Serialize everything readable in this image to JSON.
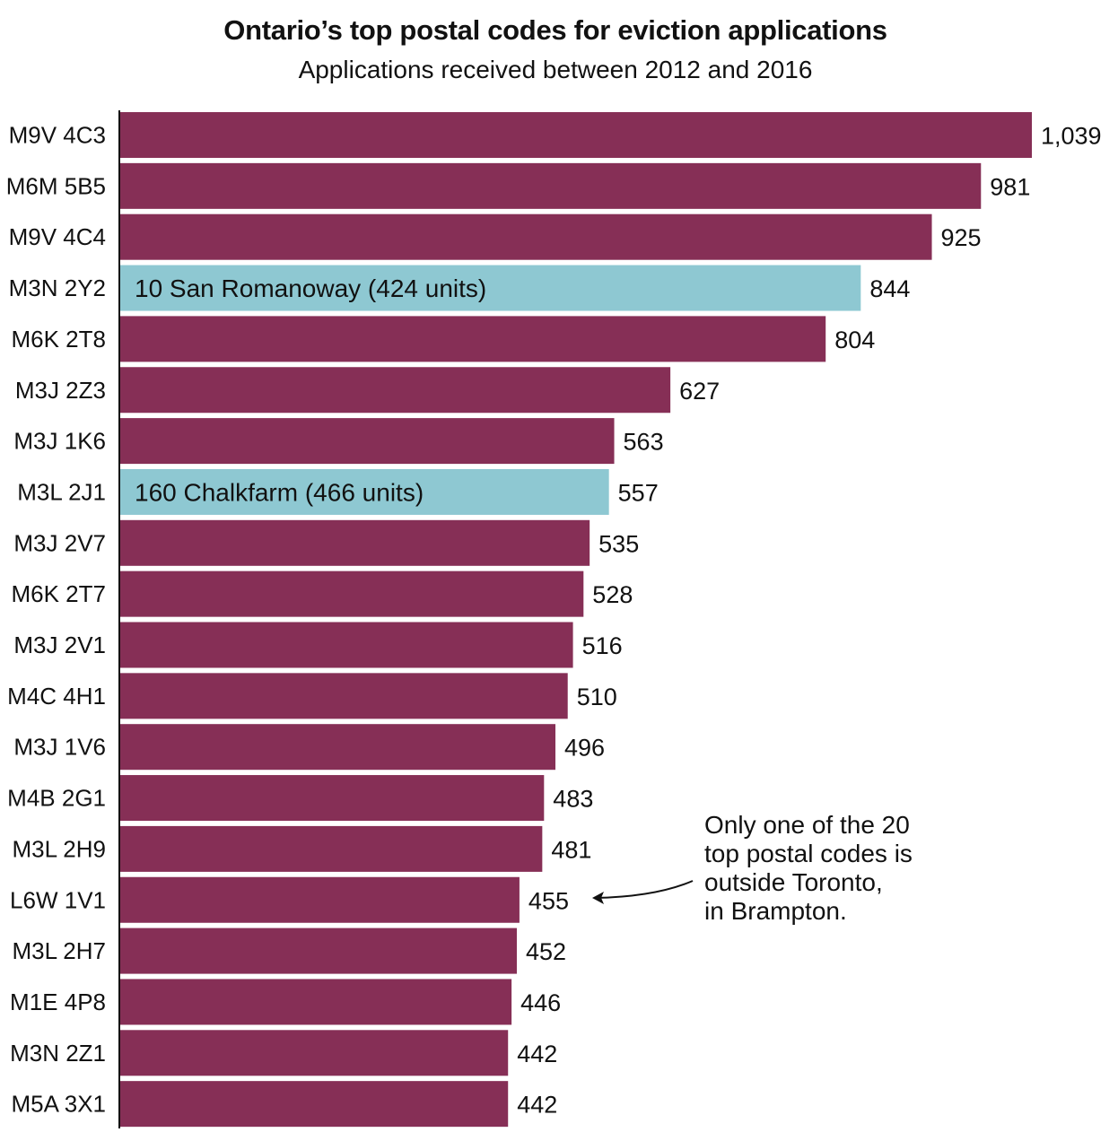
{
  "chart_data": {
    "type": "bar",
    "orientation": "horizontal",
    "title": "Ontario’s top postal codes for eviction applications",
    "subtitle": "Applications received between 2012 and 2016",
    "categories": [
      "M9V 4C3",
      "M6M 5B5",
      "M9V 4C4",
      "M3N 2Y2",
      "M6K 2T8",
      "M3J 2Z3",
      "M3J 1K6",
      "M3L 2J1",
      "M3J 2V7",
      "M6K 2T7",
      "M3J 2V1",
      "M4C 4H1",
      "M3J 1V6",
      "M4B 2G1",
      "M3L 2H9",
      "L6W 1V1",
      "M3L 2H7",
      "M1E 4P8",
      "M3N 2Z1",
      "M5A 3X1"
    ],
    "values": [
      1039,
      981,
      925,
      844,
      804,
      627,
      563,
      557,
      535,
      528,
      516,
      510,
      496,
      483,
      481,
      455,
      452,
      446,
      442,
      442
    ],
    "value_labels": [
      "1,039",
      "981",
      "925",
      "844",
      "804",
      "627",
      "563",
      "557",
      "535",
      "528",
      "516",
      "510",
      "496",
      "483",
      "481",
      "455",
      "452",
      "446",
      "442",
      "442"
    ],
    "highlighted": [
      3,
      7
    ],
    "inbar_labels": {
      "3": "10 San Romanoway (424 units)",
      "7": "160 Chalkfarm (466 units)"
    },
    "xlim": [
      0,
      1039
    ],
    "grid": false,
    "colors": {
      "default": "#862f56",
      "highlight": "#8ec8d2",
      "text": "#111111"
    },
    "annotation": {
      "lines": [
        "Only one of the 20",
        "top postal codes is",
        "outside Toronto,",
        "in Brampton."
      ],
      "points_to_index": 15
    }
  }
}
